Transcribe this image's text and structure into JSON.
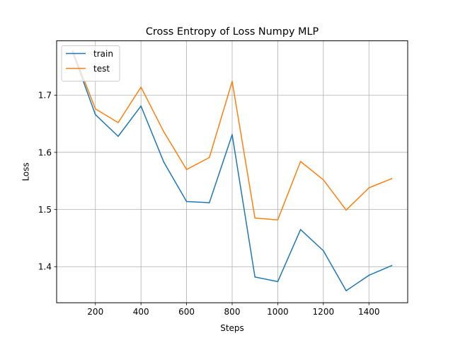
{
  "chart_data": {
    "type": "line",
    "title": "Cross Entropy of Loss Numpy MLP",
    "xlabel": "Steps",
    "ylabel": "Loss",
    "xlim": [
      30,
      1570
    ],
    "ylim": [
      1.337,
      1.795
    ],
    "xticks": [
      200,
      400,
      600,
      800,
      1000,
      1200,
      1400
    ],
    "yticks": [
      1.4,
      1.5,
      1.6,
      1.7
    ],
    "ytick_labels": [
      "1.4",
      "1.5",
      "1.6",
      "1.7"
    ],
    "grid": true,
    "legend_position": "top-left",
    "x": [
      100,
      200,
      300,
      400,
      500,
      600,
      700,
      800,
      900,
      1000,
      1100,
      1200,
      1300,
      1400,
      1500
    ],
    "series": [
      {
        "name": "train",
        "color": "#1f77b4",
        "values": [
          1.776,
          1.666,
          1.628,
          1.681,
          1.583,
          1.514,
          1.512,
          1.631,
          1.382,
          1.374,
          1.465,
          1.428,
          1.358,
          1.385,
          1.402
        ]
      },
      {
        "name": "test",
        "color": "#ff7f0e",
        "values": [
          1.778,
          1.676,
          1.652,
          1.714,
          1.636,
          1.57,
          1.591,
          1.724,
          1.485,
          1.482,
          1.584,
          1.552,
          1.499,
          1.538,
          1.554
        ]
      }
    ]
  }
}
